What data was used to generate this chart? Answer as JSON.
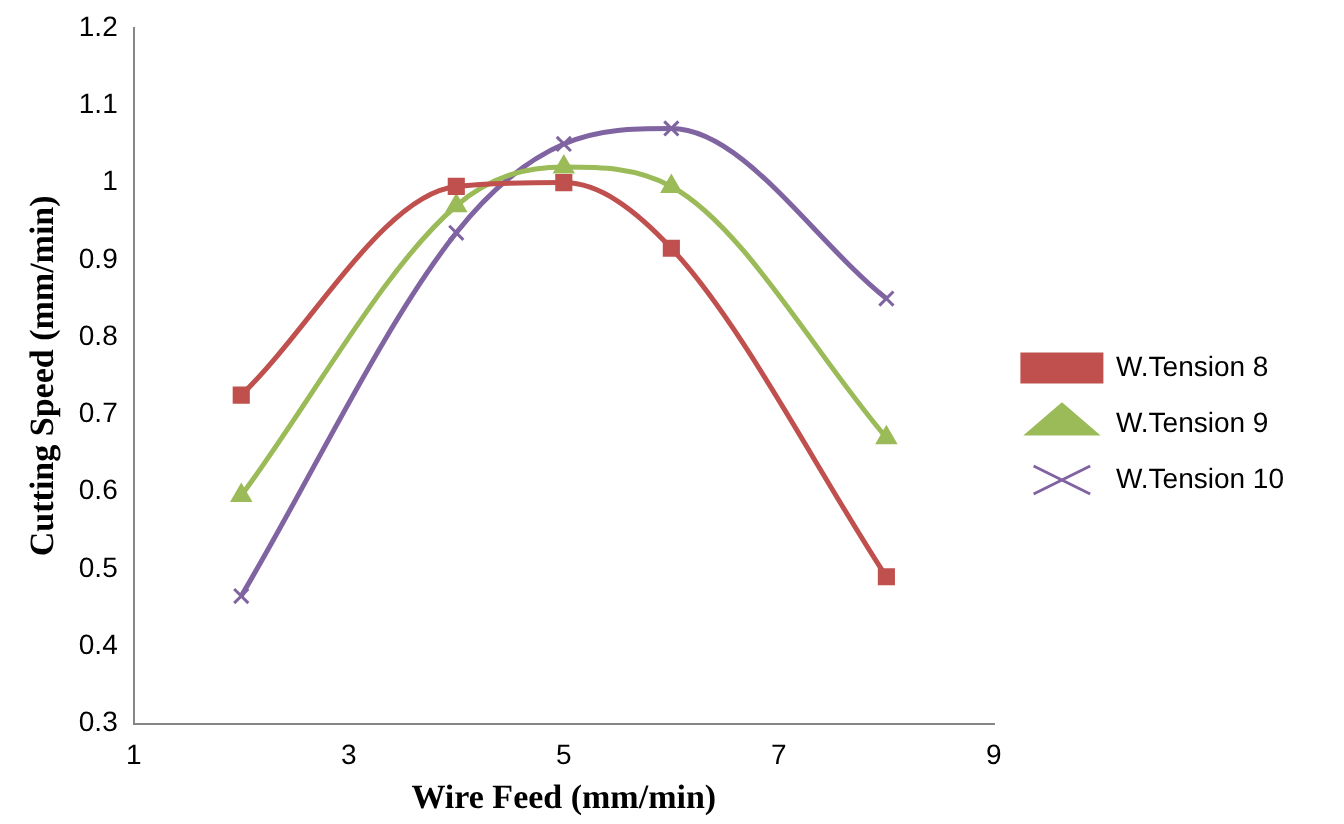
{
  "chart_data": {
    "type": "line",
    "xlabel": "Wire Feed (mm/min)",
    "ylabel": "Cutting Speed (mm/min)",
    "x": [
      2,
      4,
      5,
      6,
      8
    ],
    "xlim": [
      1,
      9
    ],
    "xticks": [
      1,
      3,
      5,
      7,
      9
    ],
    "ylim": [
      0.3,
      1.2
    ],
    "yticks": [
      0.3,
      0.4,
      0.5,
      0.6,
      0.7,
      0.8,
      0.9,
      1,
      1.1,
      1.2
    ],
    "grid": false,
    "legend": "right",
    "line_style": "solid",
    "series": [
      {
        "name": "W.Tension 8",
        "color": "#c0504d",
        "marker": "square",
        "values": [
          0.725,
          0.995,
          1.0,
          0.915,
          0.49
        ]
      },
      {
        "name": "W.Tension 9",
        "color": "#9bbb59",
        "marker": "triangle",
        "values": [
          0.595,
          0.97,
          1.02,
          0.995,
          0.67
        ]
      },
      {
        "name": "W.Tension 10",
        "color": "#8064a2",
        "marker": "cross",
        "values": [
          0.465,
          0.935,
          1.05,
          1.07,
          0.85
        ]
      }
    ]
  }
}
